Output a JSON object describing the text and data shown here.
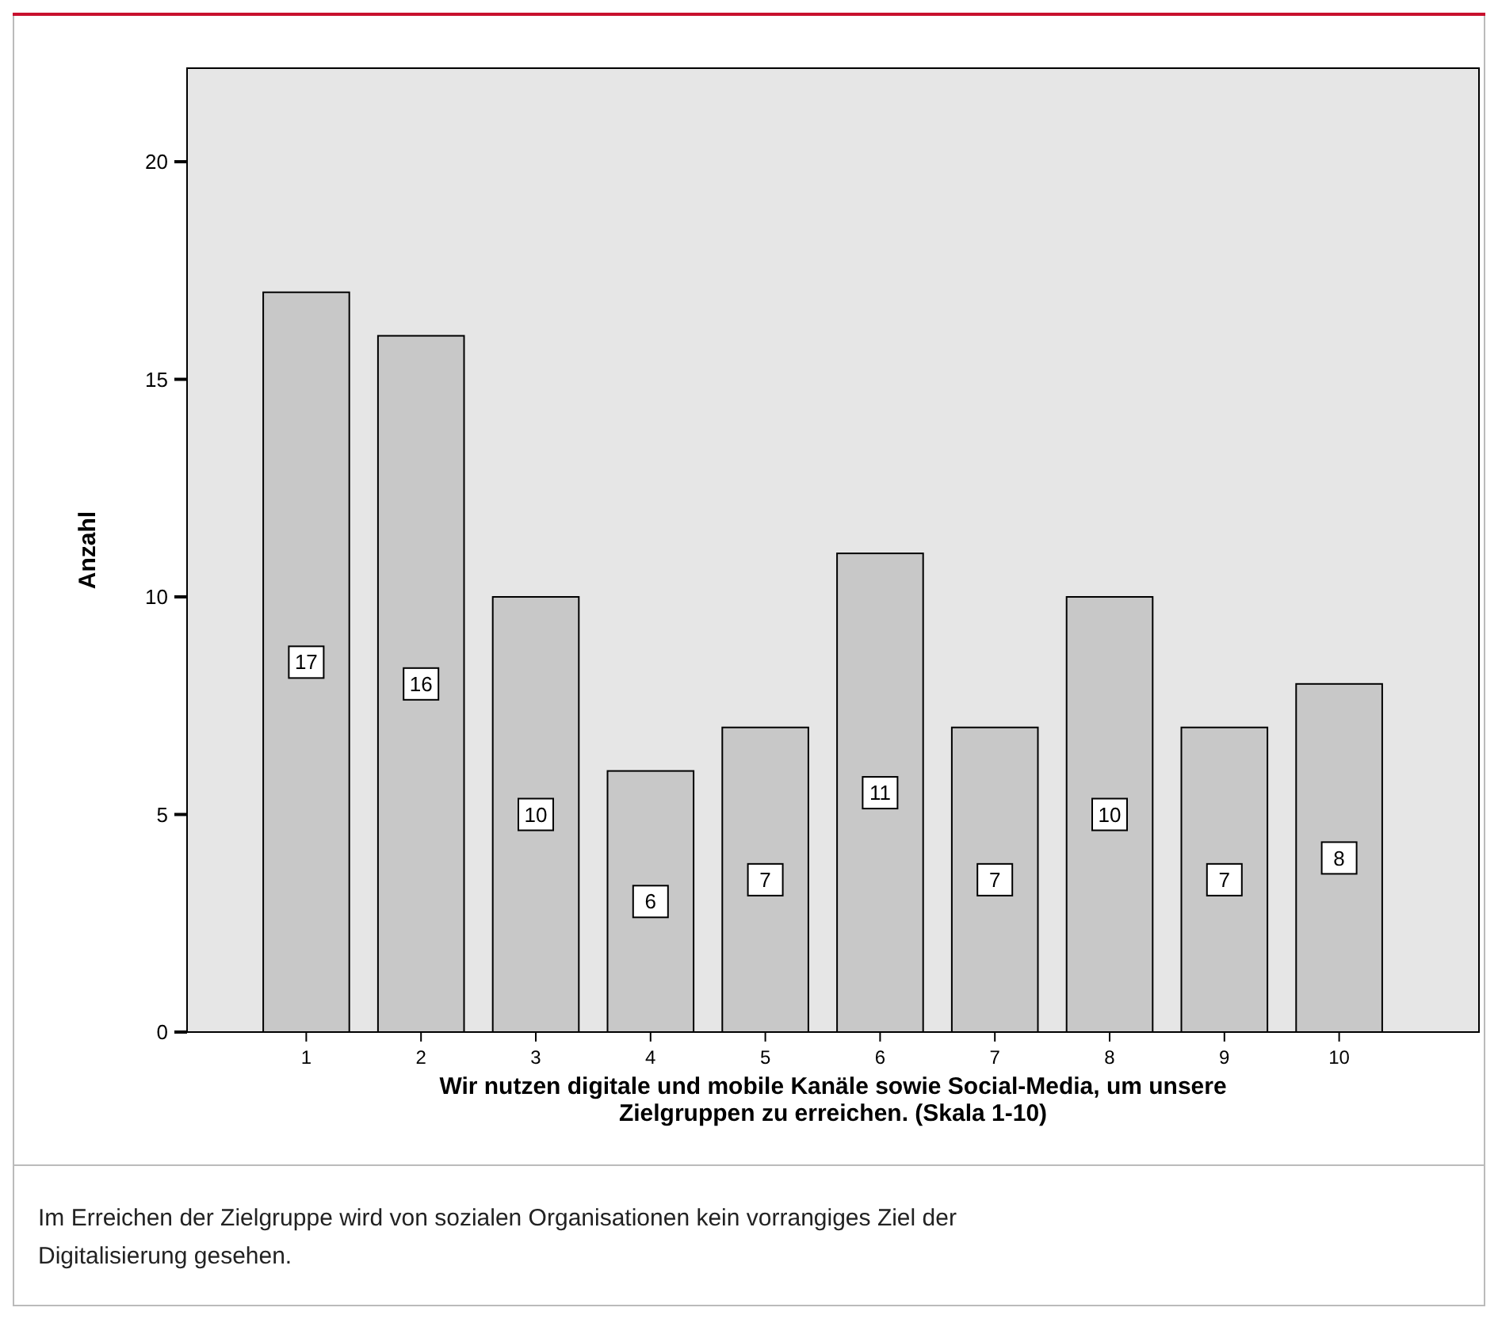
{
  "chart_data": {
    "type": "bar",
    "xlabel": "Wir nutzen digitale und mobile Kanäle sowie Social-Media, um unsere Zielgruppen zu erreichen. (Skala 1-10)",
    "ylabel": "Anzahl",
    "categories": [
      "1",
      "2",
      "3",
      "4",
      "5",
      "6",
      "7",
      "8",
      "9",
      "10"
    ],
    "values": [
      17,
      16,
      10,
      6,
      7,
      11,
      7,
      10,
      7,
      8
    ],
    "color": "#c8c8c8",
    "ylim": [
      0,
      22.15
    ],
    "yticks": [
      0,
      5,
      10,
      15,
      20
    ],
    "data_labels": true,
    "grid": false,
    "annotations": [
      "Im Erreichen der Zielgruppe wird von sozialen Organisationen kein vorrangiges Ziel der Digitalisierung gesehen."
    ]
  }
}
